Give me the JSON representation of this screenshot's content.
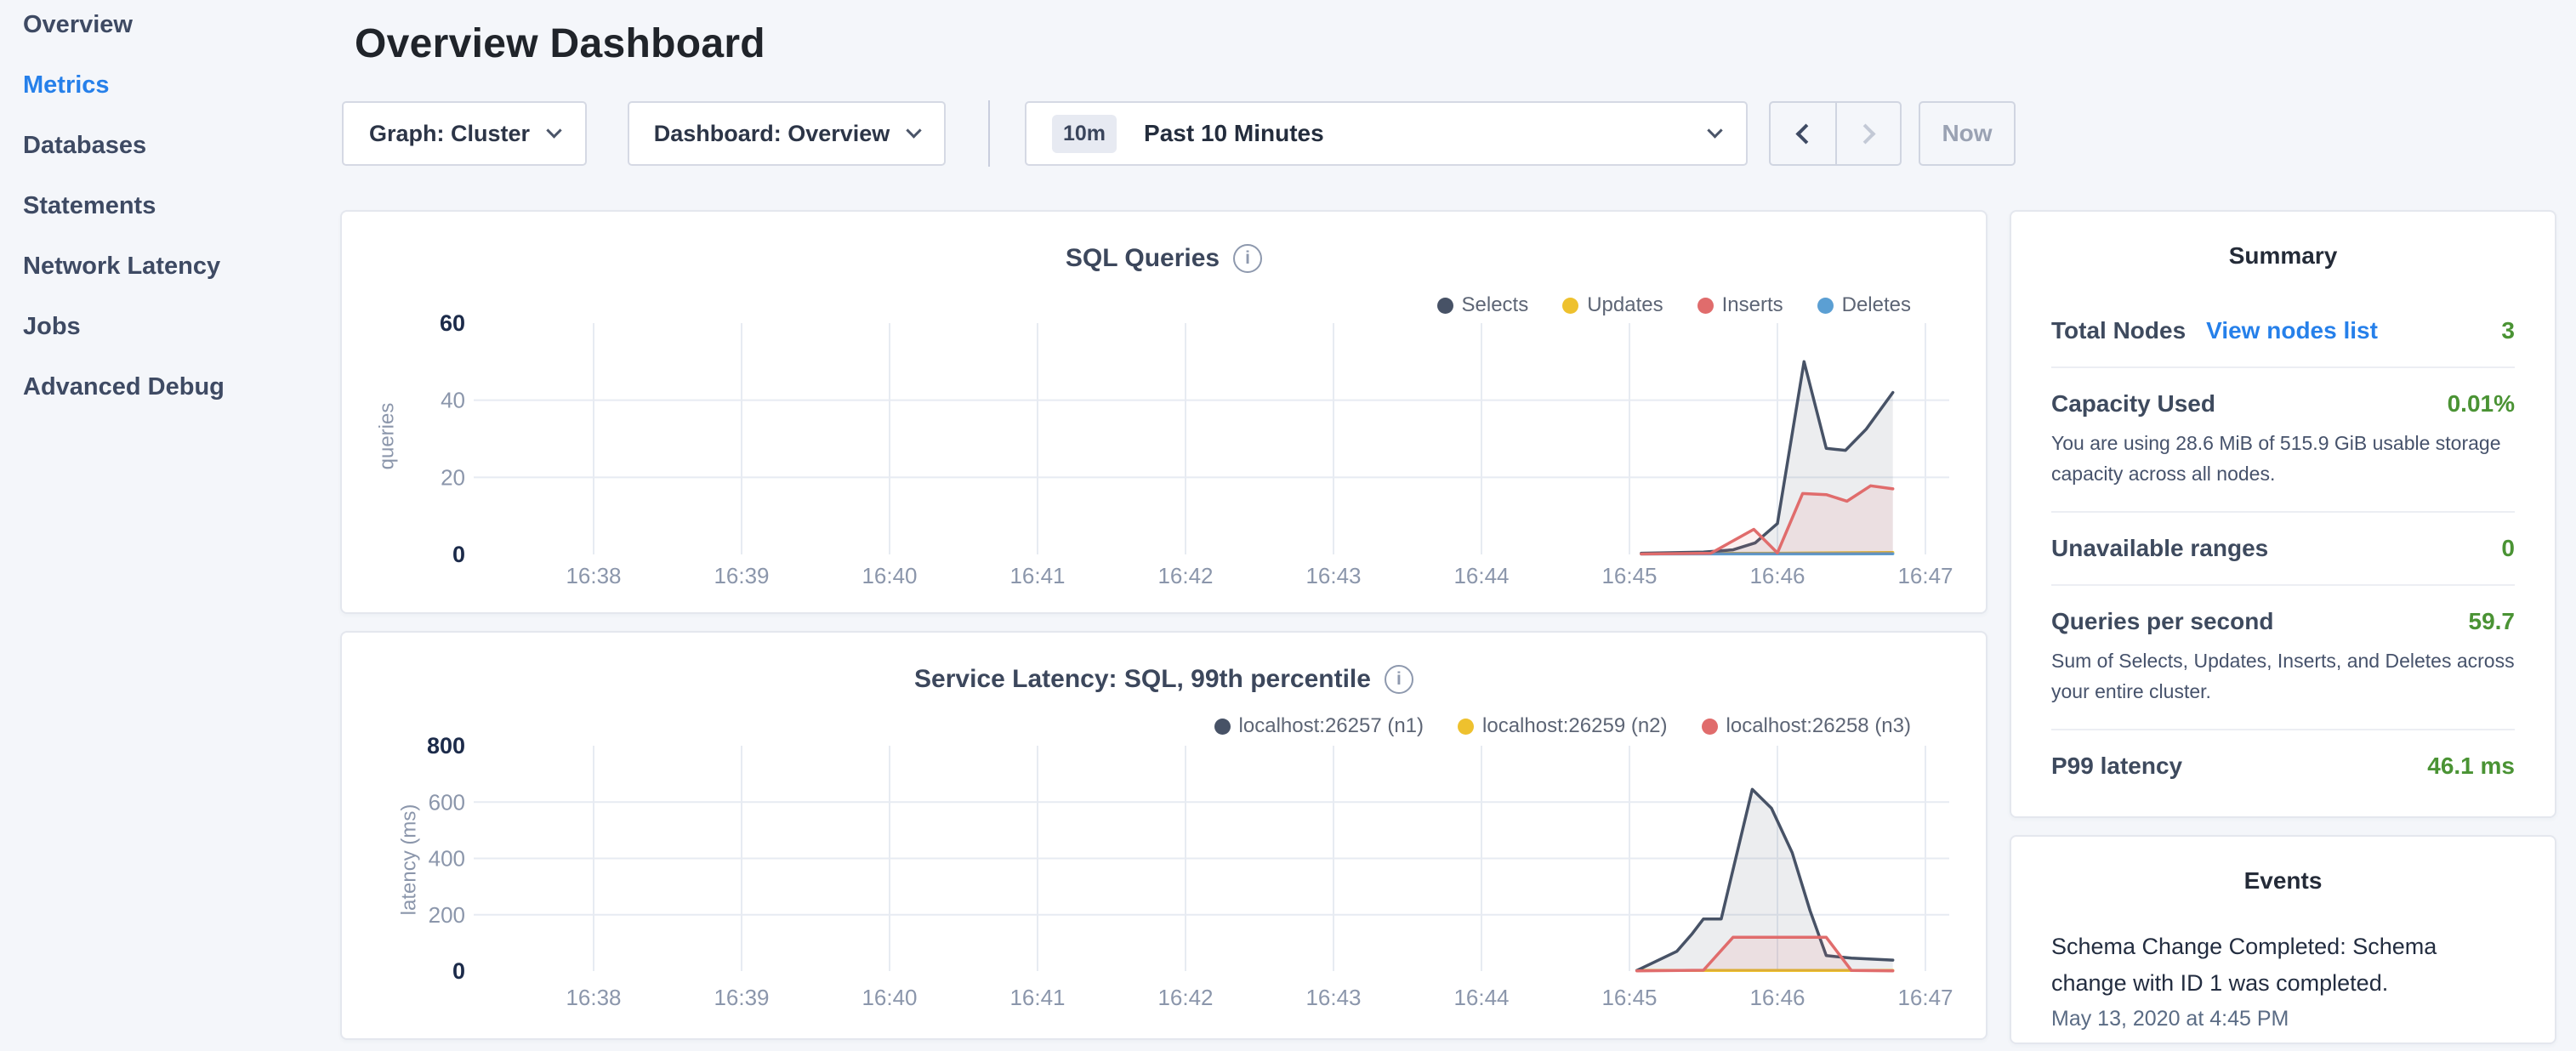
{
  "sidebar": {
    "items": [
      {
        "label": "Overview"
      },
      {
        "label": "Metrics",
        "active": true
      },
      {
        "label": "Databases"
      },
      {
        "label": "Statements"
      },
      {
        "label": "Network Latency"
      },
      {
        "label": "Jobs"
      },
      {
        "label": "Advanced Debug"
      }
    ]
  },
  "header": {
    "title": "Overview Dashboard"
  },
  "toolbar": {
    "graph": "Graph: Cluster",
    "dashboard": "Dashboard: Overview",
    "range_badge": "10m",
    "range_label": "Past 10 Minutes",
    "now": "Now"
  },
  "colors": {
    "accent_blue": "#2680ea",
    "value_green": "#4a9334",
    "selects_navy": "#475266",
    "updates_yellow": "#eec12e",
    "inserts_red": "#e06c6c",
    "deletes_blue": "#5b9fd3"
  },
  "chart_data": [
    {
      "type": "area",
      "title": "SQL Queries",
      "ylabel": "queries",
      "ylim": [
        0,
        60
      ],
      "yticks": [
        0,
        20,
        40,
        60
      ],
      "ybold": [
        0,
        60
      ],
      "ygrid": [
        20,
        40
      ],
      "xticks": [
        "16:38",
        "16:39",
        "16:40",
        "16:41",
        "16:42",
        "16:43",
        "16:44",
        "16:45",
        "16:46",
        "16:47"
      ],
      "x_unit": "minutes past 16:00, data visible 16:45.1-16:46.8",
      "legend_position": "top-right",
      "series": [
        {
          "name": "Selects",
          "color": "#475266",
          "z": 1,
          "points": [
            [
              45.08,
              0.3
            ],
            [
              45.5,
              0.6
            ],
            [
              45.7,
              1.2
            ],
            [
              45.85,
              3
            ],
            [
              46.0,
              8
            ],
            [
              46.18,
              50
            ],
            [
              46.33,
              27.5
            ],
            [
              46.46,
              27
            ],
            [
              46.6,
              32.5
            ],
            [
              46.78,
              42
            ]
          ]
        },
        {
          "name": "Updates",
          "color": "#eec12e",
          "z": 0,
          "points": [
            [
              45.08,
              0.2
            ],
            [
              46.0,
              0.3
            ],
            [
              46.78,
              0.5
            ]
          ]
        },
        {
          "name": "Inserts",
          "color": "#e06c6c",
          "z": 2,
          "points": [
            [
              45.08,
              0.1
            ],
            [
              45.55,
              0.3
            ],
            [
              45.84,
              6.5
            ],
            [
              46.0,
              0.4
            ],
            [
              46.17,
              15.8
            ],
            [
              46.33,
              15.5
            ],
            [
              46.47,
              13.8
            ],
            [
              46.63,
              17.8
            ],
            [
              46.78,
              17
            ]
          ]
        },
        {
          "name": "Deletes",
          "color": "#5b9fd3",
          "z": 0,
          "points": [
            [
              45.08,
              0.1
            ],
            [
              46.78,
              0.15
            ]
          ]
        }
      ]
    },
    {
      "type": "area",
      "title": "Service Latency: SQL, 99th percentile",
      "ylabel": "latency (ms)",
      "ylim": [
        0,
        800
      ],
      "yticks": [
        0,
        200,
        400,
        600,
        800
      ],
      "ybold": [
        0,
        800
      ],
      "ygrid": [
        200,
        400,
        600
      ],
      "xticks": [
        "16:38",
        "16:39",
        "16:40",
        "16:41",
        "16:42",
        "16:43",
        "16:44",
        "16:45",
        "16:46",
        "16:47"
      ],
      "x_unit": "minutes past 16:00, data visible 16:45.05-16:46.8",
      "legend_position": "top-right",
      "series": [
        {
          "name": "localhost:26257 (n1)",
          "color": "#475266",
          "z": 1,
          "points": [
            [
              45.05,
              2
            ],
            [
              45.2,
              40
            ],
            [
              45.32,
              70
            ],
            [
              45.42,
              130
            ],
            [
              45.5,
              185
            ],
            [
              45.62,
              185
            ],
            [
              45.83,
              645
            ],
            [
              45.96,
              578
            ],
            [
              46.1,
              420
            ],
            [
              46.22,
              215
            ],
            [
              46.33,
              55
            ],
            [
              46.5,
              46
            ],
            [
              46.78,
              39
            ]
          ]
        },
        {
          "name": "localhost:26259 (n2)",
          "color": "#eec12e",
          "z": 0,
          "points": [
            [
              45.05,
              2
            ],
            [
              46.78,
              2
            ]
          ]
        },
        {
          "name": "localhost:26258 (n3)",
          "color": "#e06c6c",
          "z": 2,
          "points": [
            [
              45.05,
              1
            ],
            [
              45.5,
              3
            ],
            [
              45.7,
              120
            ],
            [
              46.33,
              120
            ],
            [
              46.5,
              2
            ],
            [
              46.78,
              1
            ]
          ]
        }
      ]
    }
  ],
  "summary": {
    "title": "Summary",
    "nodes": {
      "label": "Total Nodes",
      "link": "View nodes list",
      "value": "3"
    },
    "capacity": {
      "label": "Capacity Used",
      "value": "0.01%",
      "desc": "You are using 28.6 MiB of 515.9 GiB usable storage capacity across all nodes."
    },
    "ranges": {
      "label": "Unavailable ranges",
      "value": "0"
    },
    "qps": {
      "label": "Queries per second",
      "value": "59.7",
      "desc": "Sum of Selects, Updates, Inserts, and Deletes across your entire cluster."
    },
    "p99": {
      "label": "P99 latency",
      "value": "46.1 ms"
    }
  },
  "events": {
    "title": "Events",
    "items": [
      {
        "text": "Schema Change Completed: Schema change with ID 1 was completed.",
        "date": "May 13, 2020 at 4:45 PM"
      }
    ]
  }
}
